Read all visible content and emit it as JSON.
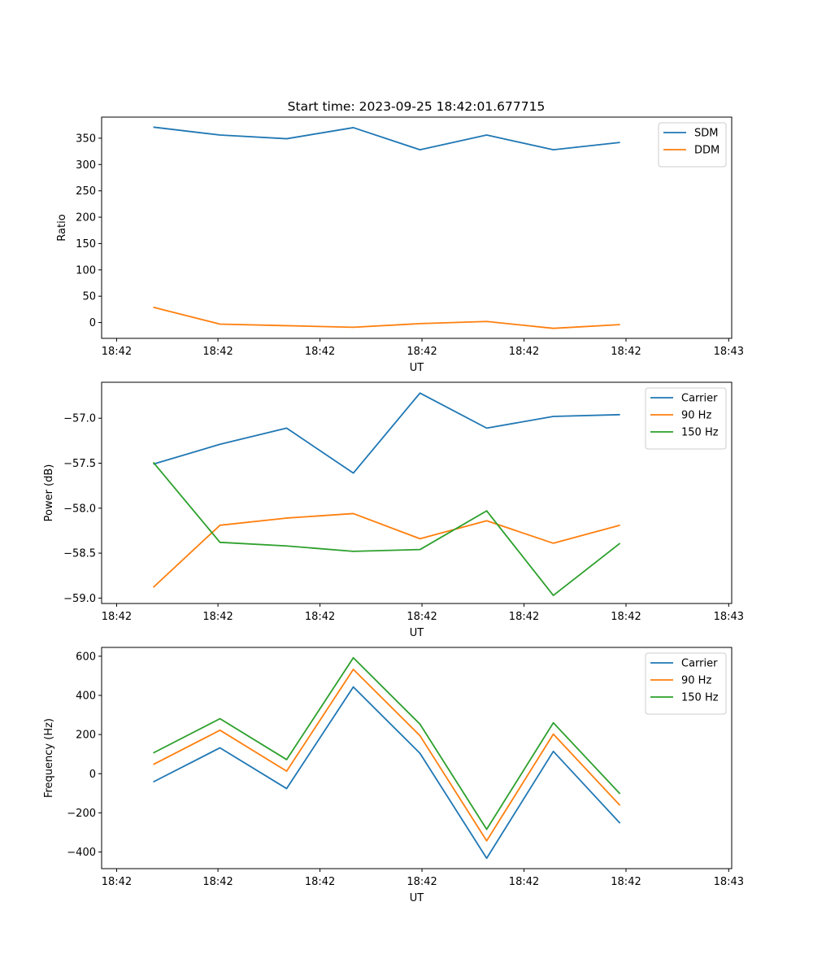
{
  "figure": {
    "title": "Start time: 2023-09-25 18:42:01.677715"
  },
  "colors": {
    "blue": "#1f77b4",
    "orange": "#ff7f0e",
    "green": "#2ca02c"
  },
  "chart_data": [
    {
      "type": "line",
      "id": "ratio",
      "title": "Start time: 2023-09-25 18:42:01.677715",
      "xlabel": "UT",
      "ylabel": "Ratio",
      "x": [
        1,
        2,
        3,
        4,
        5,
        6,
        7,
        8
      ],
      "xlim": [
        0.225,
        9.675
      ],
      "ylim": [
        -30,
        390
      ],
      "yticks": [
        0,
        50,
        100,
        150,
        200,
        250,
        300,
        350
      ],
      "xticks": [
        0.45,
        1.97,
        3.5,
        5.03,
        6.56,
        8.09,
        9.63
      ],
      "xtick_labels": [
        "18:42",
        "18:42",
        "18:42",
        "18:42",
        "18:42",
        "18:42",
        "18:43"
      ],
      "legend": "top-right",
      "series": [
        {
          "name": "SDM",
          "color": "#1f77b4",
          "values": [
            371,
            356,
            349,
            370,
            328,
            356,
            328,
            342
          ]
        },
        {
          "name": "DDM",
          "color": "#ff7f0e",
          "values": [
            29,
            -3,
            -6,
            -9,
            -2,
            2,
            -11,
            -4
          ]
        }
      ]
    },
    {
      "type": "line",
      "id": "power",
      "xlabel": "UT",
      "ylabel": "Power (dB)",
      "x": [
        1,
        2,
        3,
        4,
        5,
        6,
        7,
        8
      ],
      "xlim": [
        0.225,
        9.675
      ],
      "ylim": [
        -59.06,
        -56.6
      ],
      "yticks": [
        -59.0,
        -58.5,
        -58.0,
        -57.5,
        -57.0
      ],
      "ytick_labels": [
        "−59.0",
        "−58.5",
        "−58.0",
        "−57.5",
        "−57.0"
      ],
      "xticks": [
        0.45,
        1.97,
        3.5,
        5.03,
        6.56,
        8.09,
        9.63
      ],
      "xtick_labels": [
        "18:42",
        "18:42",
        "18:42",
        "18:42",
        "18:42",
        "18:42",
        "18:43"
      ],
      "legend": "top-right",
      "series": [
        {
          "name": "Carrier",
          "color": "#1f77b4",
          "values": [
            -57.51,
            -57.29,
            -57.11,
            -57.61,
            -56.72,
            -57.11,
            -56.98,
            -56.96
          ]
        },
        {
          "name": "90 Hz",
          "color": "#ff7f0e",
          "values": [
            -58.88,
            -58.19,
            -58.11,
            -58.06,
            -58.34,
            -58.14,
            -58.39,
            -58.19
          ]
        },
        {
          "name": "150 Hz",
          "color": "#2ca02c",
          "values": [
            -57.49,
            -58.38,
            -58.42,
            -58.48,
            -58.46,
            -58.03,
            -58.97,
            -58.39
          ]
        }
      ]
    },
    {
      "type": "line",
      "id": "frequency",
      "xlabel": "UT",
      "ylabel": "Frequency (Hz)",
      "x": [
        1,
        2,
        3,
        4,
        5,
        6,
        7,
        8
      ],
      "xlim": [
        0.225,
        9.675
      ],
      "ylim": [
        -485,
        645
      ],
      "yticks": [
        -400,
        -200,
        0,
        200,
        400,
        600
      ],
      "ytick_labels": [
        "−400",
        "−200",
        "0",
        "200",
        "400",
        "600"
      ],
      "xticks": [
        0.45,
        1.97,
        3.5,
        5.03,
        6.56,
        8.09,
        9.63
      ],
      "xtick_labels": [
        "18:42",
        "18:42",
        "18:42",
        "18:42",
        "18:42",
        "18:42",
        "18:43"
      ],
      "legend": "top-right",
      "series": [
        {
          "name": "Carrier",
          "color": "#1f77b4",
          "values": [
            -42,
            132,
            -76,
            443,
            104,
            -432,
            114,
            -253
          ]
        },
        {
          "name": "90 Hz",
          "color": "#ff7f0e",
          "values": [
            47,
            222,
            13,
            533,
            194,
            -343,
            202,
            -162
          ]
        },
        {
          "name": "150 Hz",
          "color": "#2ca02c",
          "values": [
            106,
            281,
            72,
            592,
            253,
            -284,
            260,
            -103
          ]
        }
      ]
    }
  ]
}
